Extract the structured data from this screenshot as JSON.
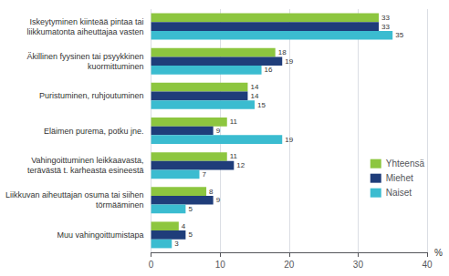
{
  "chart_data": {
    "type": "bar",
    "orientation": "horizontal",
    "categories": [
      "Iskeytyminen kiinteää pintaa tai\nliikkumatonta aiheuttajaa vasten",
      "Äkillinen fyysinen tai psyykkinen\nkuormittuminen",
      "Puristuminen, ruhjoutuminen",
      "Eläimen purema, potku jne.",
      "Vahingoittuminen leikkaavasta,\nterävästä t. karheasta esineestä",
      "Liikkuvan aiheuttajan osuma tai siihen\ntörmääminen",
      "Muu vahingoittumistapa"
    ],
    "series": [
      {
        "name": "Yhteensä",
        "color": "#8DC63F",
        "values": [
          33,
          18,
          14,
          11,
          11,
          8,
          4
        ]
      },
      {
        "name": "Miehet",
        "color": "#1F3D7A",
        "values": [
          33,
          19,
          14,
          9,
          12,
          9,
          5
        ]
      },
      {
        "name": "Naiset",
        "color": "#3BBCD0",
        "values": [
          35,
          16,
          15,
          19,
          7,
          5,
          3
        ]
      }
    ],
    "xlim": [
      0,
      40
    ],
    "xticks": [
      0,
      10,
      20,
      30,
      40
    ],
    "xlabel": "%",
    "grid": true,
    "data_labels": true,
    "legend": "right"
  }
}
